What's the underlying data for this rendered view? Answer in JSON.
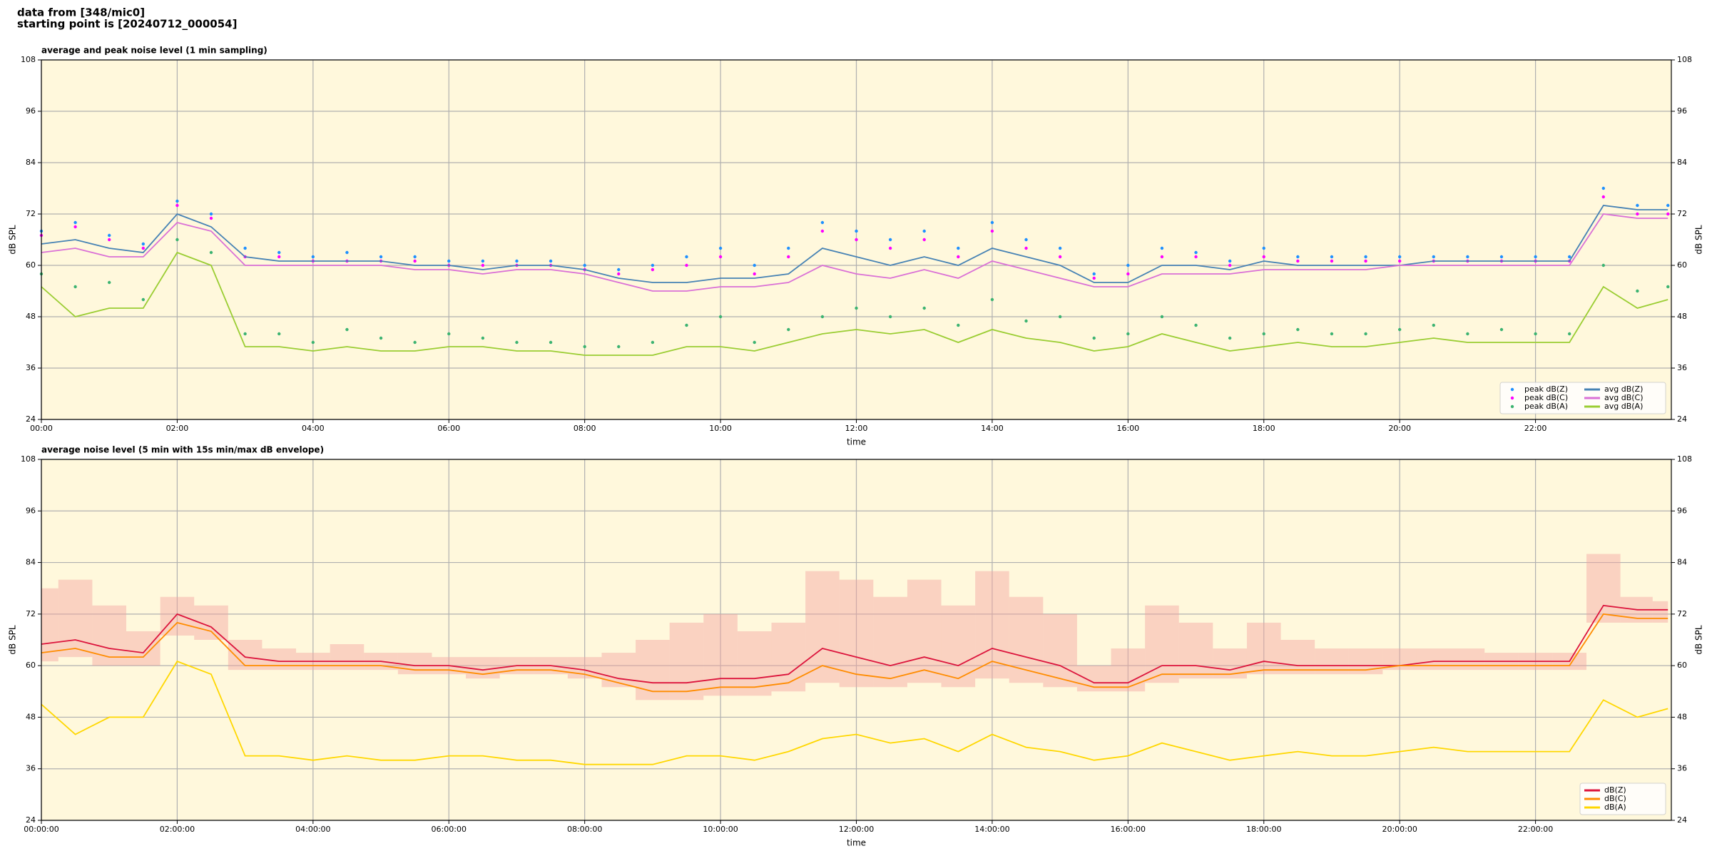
{
  "header": [
    "data from [348/mic0]",
    "starting point is [20240712_000054]"
  ],
  "chart_data": [
    {
      "type": "line",
      "title": "average and peak noise level (1 min sampling)",
      "xlabel": "time",
      "ylabel": "dB SPL",
      "xlim": [
        0,
        24
      ],
      "ylim": [
        24,
        108
      ],
      "yticks": [
        24,
        36,
        48,
        60,
        72,
        84,
        96,
        108
      ],
      "xticks": [
        {
          "value": 0,
          "label": "00:00"
        },
        {
          "value": 2,
          "label": "02:00"
        },
        {
          "value": 4,
          "label": "04:00"
        },
        {
          "value": 6,
          "label": "06:00"
        },
        {
          "value": 8,
          "label": "08:00"
        },
        {
          "value": 10,
          "label": "10:00"
        },
        {
          "value": 12,
          "label": "12:00"
        },
        {
          "value": 14,
          "label": "14:00"
        },
        {
          "value": 16,
          "label": "16:00"
        },
        {
          "value": 18,
          "label": "18:00"
        },
        {
          "value": 20,
          "label": "20:00"
        },
        {
          "value": 22,
          "label": "22:00"
        }
      ],
      "grid": true,
      "legend": "lower right",
      "legend_columns": 2,
      "background": "#fff8dc",
      "x": [
        0,
        0.5,
        1,
        1.5,
        2,
        2.5,
        3,
        3.5,
        4,
        4.5,
        5,
        5.5,
        6,
        6.5,
        7,
        7.5,
        8,
        8.5,
        9,
        9.5,
        10,
        10.5,
        11,
        11.5,
        12,
        12.5,
        13,
        13.5,
        14,
        14.5,
        15,
        15.5,
        16,
        16.5,
        17,
        17.5,
        18,
        18.5,
        19,
        19.5,
        20,
        20.5,
        21,
        21.5,
        22,
        22.5,
        23,
        23.5,
        23.95
      ],
      "series": [
        {
          "name": "peak dB(Z)",
          "style": "scatter",
          "color": "#1e90ff",
          "values": [
            68,
            70,
            67,
            65,
            75,
            72,
            64,
            63,
            62,
            63,
            62,
            62,
            61,
            61,
            61,
            61,
            60,
            59,
            60,
            62,
            64,
            60,
            64,
            70,
            68,
            66,
            68,
            64,
            70,
            66,
            64,
            58,
            60,
            64,
            63,
            61,
            64,
            62,
            62,
            62,
            62,
            62,
            62,
            62,
            62,
            62,
            78,
            74,
            74
          ]
        },
        {
          "name": "peak dB(C)",
          "style": "scatter",
          "color": "#ff00ff",
          "values": [
            67,
            69,
            66,
            64,
            74,
            71,
            62,
            62,
            61,
            61,
            61,
            61,
            60,
            60,
            60,
            60,
            59,
            58,
            59,
            60,
            62,
            58,
            62,
            68,
            66,
            64,
            66,
            62,
            68,
            64,
            62,
            57,
            58,
            62,
            62,
            60,
            62,
            61,
            61,
            61,
            61,
            61,
            61,
            61,
            61,
            61,
            76,
            72,
            72
          ]
        },
        {
          "name": "peak dB(A)",
          "style": "scatter",
          "color": "#3cb371",
          "values": [
            58,
            55,
            56,
            52,
            66,
            63,
            44,
            44,
            42,
            45,
            43,
            42,
            44,
            43,
            42,
            42,
            41,
            41,
            42,
            46,
            48,
            42,
            45,
            48,
            50,
            48,
            50,
            46,
            52,
            47,
            48,
            43,
            44,
            48,
            46,
            43,
            44,
            45,
            44,
            44,
            45,
            46,
            44,
            45,
            44,
            44,
            60,
            54,
            55
          ]
        },
        {
          "name": "avg dB(Z)",
          "style": "line",
          "color": "#4682b4",
          "values": [
            65,
            66,
            64,
            63,
            72,
            69,
            62,
            61,
            61,
            61,
            61,
            60,
            60,
            59,
            60,
            60,
            59,
            57,
            56,
            56,
            57,
            57,
            58,
            64,
            62,
            60,
            62,
            60,
            64,
            62,
            60,
            56,
            56,
            60,
            60,
            59,
            61,
            60,
            60,
            60,
            60,
            61,
            61,
            61,
            61,
            61,
            74,
            73,
            73
          ]
        },
        {
          "name": "avg dB(C)",
          "style": "line",
          "color": "#da70d6",
          "values": [
            63,
            64,
            62,
            62,
            70,
            68,
            60,
            60,
            60,
            60,
            60,
            59,
            59,
            58,
            59,
            59,
            58,
            56,
            54,
            54,
            55,
            55,
            56,
            60,
            58,
            57,
            59,
            57,
            61,
            59,
            57,
            55,
            55,
            58,
            58,
            58,
            59,
            59,
            59,
            59,
            60,
            60,
            60,
            60,
            60,
            60,
            72,
            71,
            71
          ]
        },
        {
          "name": "avg dB(A)",
          "style": "line",
          "color": "#9acd32",
          "values": [
            55,
            48,
            50,
            50,
            63,
            60,
            41,
            41,
            40,
            41,
            40,
            40,
            41,
            41,
            40,
            40,
            39,
            39,
            39,
            41,
            41,
            40,
            42,
            44,
            45,
            44,
            45,
            42,
            45,
            43,
            42,
            40,
            41,
            44,
            42,
            40,
            41,
            42,
            41,
            41,
            42,
            43,
            42,
            42,
            42,
            42,
            55,
            50,
            52
          ]
        }
      ]
    },
    {
      "type": "line",
      "title": "average noise level (5 min with 15s min/max dB envelope)",
      "xlabel": "time",
      "ylabel": "dB SPL",
      "xlim": [
        0,
        24
      ],
      "ylim": [
        24,
        108
      ],
      "yticks": [
        24,
        36,
        48,
        60,
        72,
        84,
        96,
        108
      ],
      "xticks": [
        {
          "value": 0,
          "label": "00:00:00"
        },
        {
          "value": 2,
          "label": "02:00:00"
        },
        {
          "value": 4,
          "label": "04:00:00"
        },
        {
          "value": 6,
          "label": "06:00:00"
        },
        {
          "value": 8,
          "label": "08:00:00"
        },
        {
          "value": 10,
          "label": "10:00:00"
        },
        {
          "value": 12,
          "label": "12:00:00"
        },
        {
          "value": 14,
          "label": "14:00:00"
        },
        {
          "value": 16,
          "label": "16:00:00"
        },
        {
          "value": 18,
          "label": "18:00:00"
        },
        {
          "value": 20,
          "label": "20:00:00"
        },
        {
          "value": 22,
          "label": "22:00:00"
        }
      ],
      "grid": true,
      "legend": "lower right",
      "legend_columns": 1,
      "background": "#fff8dc",
      "x": [
        0,
        0.5,
        1,
        1.5,
        2,
        2.5,
        3,
        3.5,
        4,
        4.5,
        5,
        5.5,
        6,
        6.5,
        7,
        7.5,
        8,
        8.5,
        9,
        9.5,
        10,
        10.5,
        11,
        11.5,
        12,
        12.5,
        13,
        13.5,
        14,
        14.5,
        15,
        15.5,
        16,
        16.5,
        17,
        17.5,
        18,
        18.5,
        19,
        19.5,
        20,
        20.5,
        21,
        21.5,
        22,
        22.5,
        23,
        23.5,
        23.95
      ],
      "envelope": {
        "color": "#f4a4a0",
        "high": [
          78,
          80,
          74,
          68,
          76,
          74,
          66,
          64,
          63,
          65,
          63,
          63,
          62,
          62,
          62,
          62,
          62,
          63,
          66,
          70,
          72,
          68,
          70,
          82,
          80,
          76,
          80,
          74,
          82,
          76,
          72,
          60,
          64,
          74,
          70,
          64,
          70,
          66,
          64,
          64,
          64,
          64,
          64,
          63,
          63,
          63,
          86,
          76,
          75
        ],
        "low": [
          61,
          62,
          60,
          60,
          67,
          66,
          59,
          59,
          59,
          59,
          59,
          58,
          58,
          57,
          58,
          58,
          57,
          55,
          52,
          52,
          53,
          53,
          54,
          56,
          55,
          55,
          56,
          55,
          57,
          56,
          55,
          54,
          54,
          56,
          57,
          57,
          58,
          58,
          58,
          58,
          59,
          59,
          59,
          59,
          59,
          59,
          70,
          70,
          70
        ]
      },
      "series": [
        {
          "name": "dB(Z)",
          "style": "line",
          "color": "#dc143c",
          "values": [
            65,
            66,
            64,
            63,
            72,
            69,
            62,
            61,
            61,
            61,
            61,
            60,
            60,
            59,
            60,
            60,
            59,
            57,
            56,
            56,
            57,
            57,
            58,
            64,
            62,
            60,
            62,
            60,
            64,
            62,
            60,
            56,
            56,
            60,
            60,
            59,
            61,
            60,
            60,
            60,
            60,
            61,
            61,
            61,
            61,
            61,
            74,
            73,
            73
          ]
        },
        {
          "name": "dB(C)",
          "style": "line",
          "color": "#ff8c00",
          "values": [
            63,
            64,
            62,
            62,
            70,
            68,
            60,
            60,
            60,
            60,
            60,
            59,
            59,
            58,
            59,
            59,
            58,
            56,
            54,
            54,
            55,
            55,
            56,
            60,
            58,
            57,
            59,
            57,
            61,
            59,
            57,
            55,
            55,
            58,
            58,
            58,
            59,
            59,
            59,
            59,
            60,
            60,
            60,
            60,
            60,
            60,
            72,
            71,
            71
          ]
        },
        {
          "name": "dB(A)",
          "style": "line",
          "color": "#ffd700",
          "values": [
            51,
            44,
            48,
            48,
            61,
            58,
            39,
            39,
            38,
            39,
            38,
            38,
            39,
            39,
            38,
            38,
            37,
            37,
            37,
            39,
            39,
            38,
            40,
            43,
            44,
            42,
            43,
            40,
            44,
            41,
            40,
            38,
            39,
            42,
            40,
            38,
            39,
            40,
            39,
            39,
            40,
            41,
            40,
            40,
            40,
            40,
            52,
            48,
            50
          ]
        }
      ]
    }
  ]
}
